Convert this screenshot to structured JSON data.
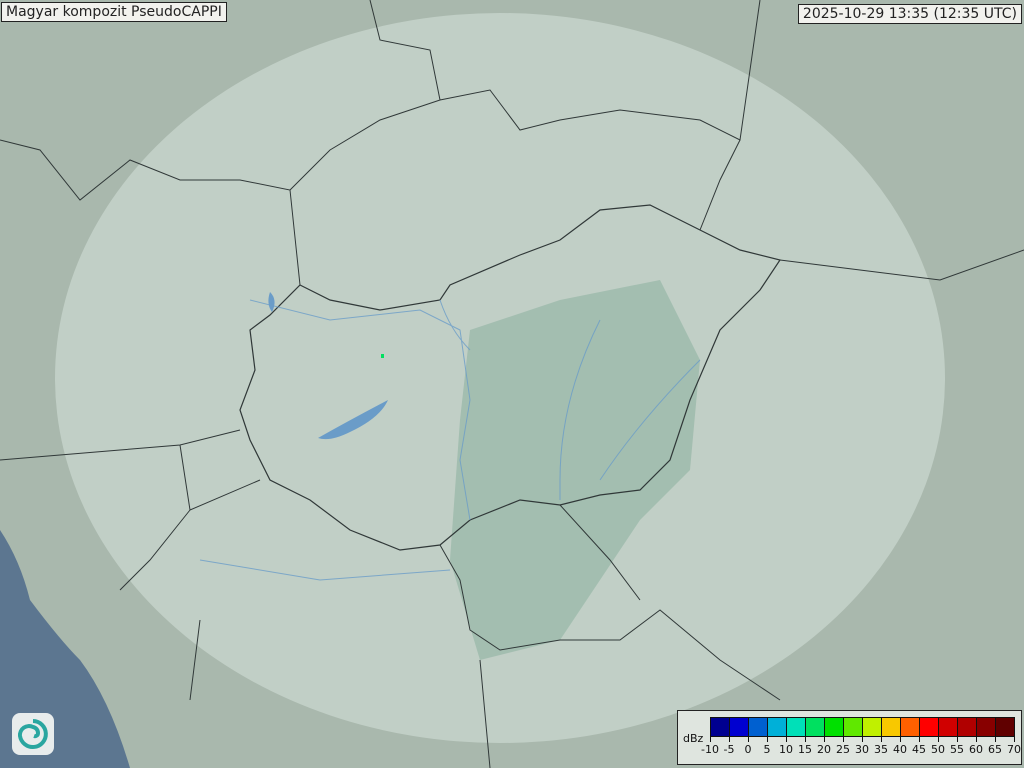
{
  "header": {
    "title": "Magyar kompozit  PseudoCAPPI",
    "timestamp": "2025-10-29 13:35 (12:35 UTC)"
  },
  "map": {
    "colors": {
      "land": "#a9b8ad",
      "sea": "#5c7690",
      "radar_coverage": "#d6e2da",
      "hungary_plain": "#8fb2a2",
      "border": "#303838",
      "river": "#6a9cc8"
    },
    "echoes": "isolated weak returns near Lake Balaton"
  },
  "legend": {
    "unit": "dBz",
    "ticks": [
      "-10",
      "-5",
      "0",
      "5",
      "10",
      "15",
      "20",
      "25",
      "30",
      "35",
      "40",
      "45",
      "50",
      "55",
      "60",
      "65",
      "70"
    ],
    "colors": [
      "#000090",
      "#0000d0",
      "#0060d0",
      "#00b0d8",
      "#00e0b8",
      "#00e060",
      "#00e000",
      "#60e800",
      "#c0f000",
      "#f8c800",
      "#ff6000",
      "#ff0000",
      "#d00000",
      "#b00000",
      "#880000",
      "#600000"
    ]
  },
  "logo": {
    "icon": "swirl-logo-icon"
  }
}
